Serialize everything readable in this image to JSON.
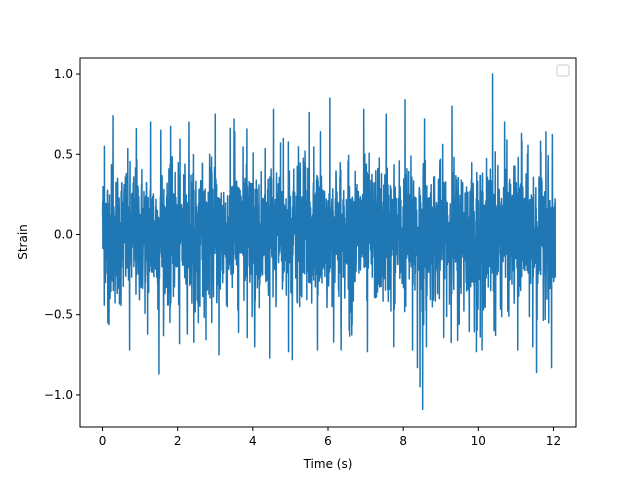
{
  "chart_data": {
    "type": "line",
    "title": "",
    "xlabel": "Time (s)",
    "ylabel": "Strain",
    "xlim": [
      -0.6,
      12.6
    ],
    "ylim": [
      -1.2,
      1.1
    ],
    "xticks": [
      0,
      2,
      4,
      6,
      8,
      10,
      12
    ],
    "xtick_labels": [
      "0",
      "2",
      "4",
      "6",
      "8",
      "10",
      "12"
    ],
    "yticks": [
      -1.0,
      -0.5,
      0.0,
      0.5,
      1.0
    ],
    "ytick_labels": [
      "−1.0",
      "−0.5",
      "0.0",
      "0.5",
      "1.0"
    ],
    "grid": false,
    "legend": {
      "placement": "upper-right",
      "entries": []
    },
    "series": [
      {
        "color": "#1f77b4",
        "x_range": [
          0,
          12.05
        ],
        "typical_band": [
          -0.45,
          0.45
        ],
        "x": [
          0.0,
          0.05,
          0.14,
          0.28,
          0.72,
          0.9,
          1.2,
          1.28,
          1.5,
          1.55,
          2.05,
          2.3,
          2.55,
          3.0,
          3.1,
          3.5,
          4.05,
          4.45,
          4.55,
          4.95,
          5.05,
          5.5,
          5.72,
          5.8,
          6.05,
          6.15,
          6.35,
          6.95,
          7.05,
          7.55,
          7.75,
          8.05,
          8.25,
          8.38,
          8.45,
          8.52,
          8.57,
          8.62,
          9.3,
          9.45,
          9.95,
          10.1,
          10.38,
          10.42,
          10.7,
          11.05,
          11.15,
          11.45,
          11.55,
          11.8,
          11.95,
          12.05
        ],
        "y": [
          0.12,
          0.55,
          -0.55,
          0.74,
          -0.72,
          0.66,
          -0.62,
          0.7,
          -0.87,
          0.65,
          -0.68,
          0.7,
          -0.55,
          0.75,
          -0.75,
          0.72,
          -0.7,
          -0.77,
          0.78,
          -0.73,
          -0.78,
          0.76,
          -0.72,
          0.64,
          0.85,
          -0.67,
          -0.72,
          0.78,
          -0.73,
          0.75,
          -0.7,
          0.84,
          -0.72,
          -0.83,
          -0.95,
          -1.09,
          0.72,
          -0.7,
          0.8,
          -0.66,
          -0.73,
          -0.72,
          1.0,
          -0.6,
          0.7,
          -0.72,
          0.63,
          -0.7,
          -0.86,
          0.64,
          -0.83,
          -0.27
        ]
      }
    ]
  }
}
